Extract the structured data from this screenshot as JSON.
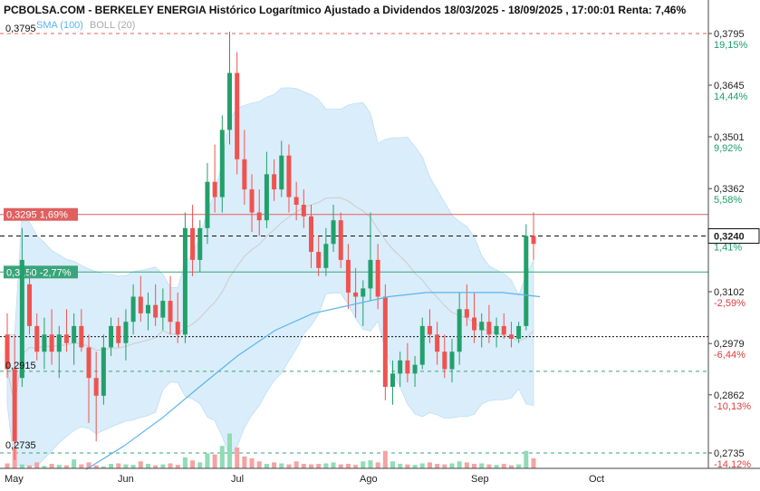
{
  "title": "PCBOLSA.COM - BERKELEY ENERGIA Histórico Logarítmico Ajustado a Dividendos 18/03/2025 - 18/09/2025 , 17:00:01 Renta: 7,46%",
  "indicators": {
    "sma": "SMA (100)",
    "boll": "BOLL (20)",
    "sma_color": "#5ab4ee",
    "boll_color": "#bbbbbb"
  },
  "colors": {
    "up": "#22a06b",
    "down": "#ef5350",
    "band": "#d6ecfa",
    "sma": "#5ab4ee",
    "resistance": "#e06060",
    "support": "#3aa57a",
    "top_dashed": "#e06060",
    "bottom_dashed": "#3aa57a"
  },
  "price_axis": [
    {
      "price": "0,3795",
      "pct": "19,15%",
      "sign": "pos"
    },
    {
      "price": "0,3645",
      "pct": "14,44%",
      "sign": "pos"
    },
    {
      "price": "0,3501",
      "pct": "9,92%",
      "sign": "pos"
    },
    {
      "price": "0,3362",
      "pct": "5,58%",
      "sign": "pos"
    },
    {
      "price": "0,3240",
      "pct": "1,41%",
      "sign": "pos"
    },
    {
      "price": "0,3102",
      "pct": "-2,59%",
      "sign": "neg"
    },
    {
      "price": "0,2979",
      "pct": "-6,44%",
      "sign": "neg"
    },
    {
      "price": "0,2862",
      "pct": "-10,13%",
      "sign": "neg"
    },
    {
      "price": "0,2735",
      "pct": "-14,12%",
      "sign": "neg"
    }
  ],
  "left_labels": {
    "top": "0,3795",
    "mid": "0,2915",
    "bottom": "0,2735"
  },
  "levels": {
    "resistance": {
      "label": "0,3295  1,69%",
      "price": 0.3295
    },
    "support": {
      "label": "0,3150  -2,77%",
      "price": 0.315
    },
    "last": {
      "price": 0.324,
      "label": "0,3240"
    }
  },
  "months": [
    "May",
    "Jun",
    "Jul",
    "Ago",
    "Sep",
    "Oct"
  ],
  "chart_data": {
    "type": "candlestick",
    "title": "PCBOLSA.COM - BERKELEY ENERGIA Histórico Logarítmico Ajustado a Dividendos 18/03/2025 - 18/09/2025 , 17:00:01 Renta: 7,46%",
    "y_scale": "log",
    "ylim": [
      0.2735,
      0.3795
    ],
    "x_categories": [
      "May",
      "Jun",
      "Jul",
      "Ago",
      "Sep",
      "Oct"
    ],
    "series": [
      {
        "name": "SMA (100)"
      },
      {
        "name": "BOLL (20)"
      }
    ],
    "candles": [
      {
        "month": "May",
        "o": 0.3,
        "h": 0.305,
        "l": 0.29,
        "c": 0.292
      },
      {
        "month": "May",
        "o": 0.292,
        "h": 0.3,
        "l": 0.272,
        "c": 0.276
      },
      {
        "month": "May",
        "o": 0.29,
        "h": 0.326,
        "l": 0.288,
        "c": 0.318
      },
      {
        "month": "May",
        "o": 0.312,
        "h": 0.316,
        "l": 0.3,
        "c": 0.302
      },
      {
        "month": "May",
        "o": 0.302,
        "h": 0.305,
        "l": 0.294,
        "c": 0.296
      },
      {
        "month": "May",
        "o": 0.296,
        "h": 0.304,
        "l": 0.292,
        "c": 0.3
      },
      {
        "month": "May",
        "o": 0.3,
        "h": 0.306,
        "l": 0.293,
        "c": 0.296
      },
      {
        "month": "May",
        "o": 0.296,
        "h": 0.302,
        "l": 0.29,
        "c": 0.3
      },
      {
        "month": "May",
        "o": 0.3,
        "h": 0.306,
        "l": 0.296,
        "c": 0.298
      },
      {
        "month": "May",
        "o": 0.298,
        "h": 0.305,
        "l": 0.293,
        "c": 0.302
      },
      {
        "month": "May",
        "o": 0.302,
        "h": 0.306,
        "l": 0.296,
        "c": 0.297
      },
      {
        "month": "May",
        "o": 0.297,
        "h": 0.3,
        "l": 0.28,
        "c": 0.29
      },
      {
        "month": "May",
        "o": 0.29,
        "h": 0.296,
        "l": 0.276,
        "c": 0.286
      },
      {
        "month": "May",
        "o": 0.286,
        "h": 0.3,
        "l": 0.284,
        "c": 0.297
      },
      {
        "month": "May",
        "o": 0.297,
        "h": 0.304,
        "l": 0.295,
        "c": 0.302
      },
      {
        "month": "May",
        "o": 0.302,
        "h": 0.304,
        "l": 0.297,
        "c": 0.298
      },
      {
        "month": "Jun",
        "o": 0.298,
        "h": 0.306,
        "l": 0.294,
        "c": 0.303
      },
      {
        "month": "Jun",
        "o": 0.303,
        "h": 0.312,
        "l": 0.3,
        "c": 0.309
      },
      {
        "month": "Jun",
        "o": 0.309,
        "h": 0.314,
        "l": 0.303,
        "c": 0.305
      },
      {
        "month": "Jun",
        "o": 0.305,
        "h": 0.31,
        "l": 0.301,
        "c": 0.307
      },
      {
        "month": "Jun",
        "o": 0.307,
        "h": 0.312,
        "l": 0.302,
        "c": 0.304
      },
      {
        "month": "Jun",
        "o": 0.304,
        "h": 0.311,
        "l": 0.301,
        "c": 0.308
      },
      {
        "month": "Jun",
        "o": 0.308,
        "h": 0.314,
        "l": 0.3,
        "c": 0.303
      },
      {
        "month": "Jun",
        "o": 0.303,
        "h": 0.31,
        "l": 0.298,
        "c": 0.3
      },
      {
        "month": "Jun",
        "o": 0.3,
        "h": 0.33,
        "l": 0.298,
        "c": 0.326
      },
      {
        "month": "Jun",
        "o": 0.326,
        "h": 0.332,
        "l": 0.314,
        "c": 0.318
      },
      {
        "month": "Jun",
        "o": 0.318,
        "h": 0.328,
        "l": 0.315,
        "c": 0.326
      },
      {
        "month": "Jun",
        "o": 0.326,
        "h": 0.343,
        "l": 0.322,
        "c": 0.338
      },
      {
        "month": "Jun",
        "o": 0.338,
        "h": 0.348,
        "l": 0.33,
        "c": 0.334
      },
      {
        "month": "Jun",
        "o": 0.334,
        "h": 0.356,
        "l": 0.33,
        "c": 0.352
      },
      {
        "month": "Jun",
        "o": 0.352,
        "h": 0.38,
        "l": 0.348,
        "c": 0.368
      },
      {
        "month": "Jun",
        "o": 0.368,
        "h": 0.374,
        "l": 0.34,
        "c": 0.344
      },
      {
        "month": "Jun",
        "o": 0.344,
        "h": 0.352,
        "l": 0.332,
        "c": 0.336
      },
      {
        "month": "Jun",
        "o": 0.336,
        "h": 0.34,
        "l": 0.325,
        "c": 0.33
      },
      {
        "month": "Jul",
        "o": 0.33,
        "h": 0.336,
        "l": 0.324,
        "c": 0.328
      },
      {
        "month": "Jul",
        "o": 0.328,
        "h": 0.346,
        "l": 0.326,
        "c": 0.34
      },
      {
        "month": "Jul",
        "o": 0.34,
        "h": 0.344,
        "l": 0.333,
        "c": 0.336
      },
      {
        "month": "Jul",
        "o": 0.336,
        "h": 0.349,
        "l": 0.334,
        "c": 0.345
      },
      {
        "month": "Jul",
        "o": 0.345,
        "h": 0.348,
        "l": 0.33,
        "c": 0.334
      },
      {
        "month": "Jul",
        "o": 0.334,
        "h": 0.338,
        "l": 0.328,
        "c": 0.332
      },
      {
        "month": "Jul",
        "o": 0.332,
        "h": 0.336,
        "l": 0.326,
        "c": 0.329
      },
      {
        "month": "Jul",
        "o": 0.329,
        "h": 0.332,
        "l": 0.316,
        "c": 0.32
      },
      {
        "month": "Jul",
        "o": 0.32,
        "h": 0.324,
        "l": 0.314,
        "c": 0.316
      },
      {
        "month": "Jul",
        "o": 0.316,
        "h": 0.326,
        "l": 0.314,
        "c": 0.322
      },
      {
        "month": "Jul",
        "o": 0.322,
        "h": 0.332,
        "l": 0.32,
        "c": 0.328
      },
      {
        "month": "Jul",
        "o": 0.328,
        "h": 0.33,
        "l": 0.316,
        "c": 0.318
      },
      {
        "month": "Jul",
        "o": 0.318,
        "h": 0.322,
        "l": 0.306,
        "c": 0.31
      },
      {
        "month": "Jul",
        "o": 0.31,
        "h": 0.316,
        "l": 0.304,
        "c": 0.309
      },
      {
        "month": "Jul",
        "o": 0.309,
        "h": 0.313,
        "l": 0.302,
        "c": 0.311
      },
      {
        "month": "Jul",
        "o": 0.311,
        "h": 0.33,
        "l": 0.308,
        "c": 0.318
      },
      {
        "month": "Jul",
        "o": 0.318,
        "h": 0.322,
        "l": 0.306,
        "c": 0.309
      },
      {
        "month": "Ago",
        "o": 0.309,
        "h": 0.312,
        "l": 0.285,
        "c": 0.288
      },
      {
        "month": "Ago",
        "o": 0.288,
        "h": 0.294,
        "l": 0.284,
        "c": 0.291
      },
      {
        "month": "Ago",
        "o": 0.291,
        "h": 0.296,
        "l": 0.288,
        "c": 0.294
      },
      {
        "month": "Ago",
        "o": 0.294,
        "h": 0.298,
        "l": 0.289,
        "c": 0.291
      },
      {
        "month": "Ago",
        "o": 0.291,
        "h": 0.295,
        "l": 0.288,
        "c": 0.293
      },
      {
        "month": "Ago",
        "o": 0.293,
        "h": 0.304,
        "l": 0.292,
        "c": 0.302
      },
      {
        "month": "Ago",
        "o": 0.302,
        "h": 0.306,
        "l": 0.298,
        "c": 0.3
      },
      {
        "month": "Ago",
        "o": 0.3,
        "h": 0.303,
        "l": 0.293,
        "c": 0.296
      },
      {
        "month": "Ago",
        "o": 0.296,
        "h": 0.3,
        "l": 0.29,
        "c": 0.292
      },
      {
        "month": "Ago",
        "o": 0.292,
        "h": 0.299,
        "l": 0.289,
        "c": 0.296
      },
      {
        "month": "Ago",
        "o": 0.296,
        "h": 0.31,
        "l": 0.293,
        "c": 0.306
      },
      {
        "month": "Ago",
        "o": 0.306,
        "h": 0.312,
        "l": 0.302,
        "c": 0.304
      },
      {
        "month": "Ago",
        "o": 0.304,
        "h": 0.31,
        "l": 0.298,
        "c": 0.301
      },
      {
        "month": "Ago",
        "o": 0.301,
        "h": 0.305,
        "l": 0.297,
        "c": 0.303
      },
      {
        "month": "Sep",
        "o": 0.303,
        "h": 0.307,
        "l": 0.298,
        "c": 0.3
      },
      {
        "month": "Sep",
        "o": 0.3,
        "h": 0.304,
        "l": 0.297,
        "c": 0.302
      },
      {
        "month": "Sep",
        "o": 0.302,
        "h": 0.305,
        "l": 0.299,
        "c": 0.3
      },
      {
        "month": "Sep",
        "o": 0.3,
        "h": 0.303,
        "l": 0.297,
        "c": 0.299
      },
      {
        "month": "Sep",
        "o": 0.299,
        "h": 0.303,
        "l": 0.298,
        "c": 0.302
      },
      {
        "month": "Sep",
        "o": 0.302,
        "h": 0.327,
        "l": 0.301,
        "c": 0.324
      },
      {
        "month": "Sep",
        "o": 0.324,
        "h": 0.33,
        "l": 0.318,
        "c": 0.322
      }
    ],
    "sma_100": [
      0.27,
      0.275,
      0.281,
      0.288,
      0.295,
      0.301,
      0.305,
      0.307,
      0.309,
      0.31,
      0.31,
      0.31,
      0.309
    ],
    "horizontal_levels": {
      "resistance": 0.3295,
      "support": 0.315,
      "last": 0.324
    }
  }
}
